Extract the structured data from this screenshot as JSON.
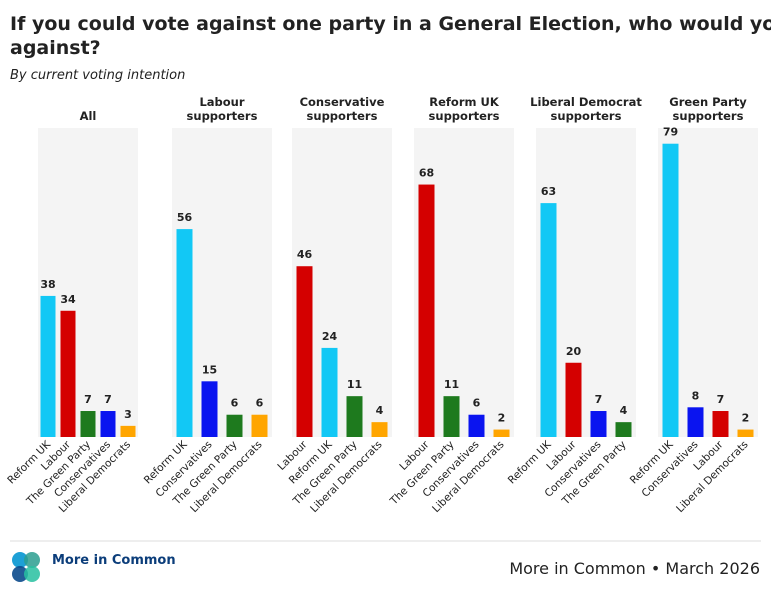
{
  "header": {
    "title": "If you could vote against one party in a General Election, who would you vote against?",
    "subtitle": "By current voting intention"
  },
  "chart_data": [
    {
      "type": "bar",
      "title": "All",
      "categories": [
        "Reform UK",
        "Labour",
        "The Green Party",
        "Conservatives",
        "Liberal Democrats"
      ],
      "values": [
        38,
        34,
        7,
        7,
        3
      ],
      "colors": [
        "#12c8f5",
        "#d40000",
        "#1e7a1e",
        "#0a14f0",
        "#ffa500"
      ],
      "ylim": [
        0,
        80
      ]
    },
    {
      "type": "bar",
      "title": "Labour supporters",
      "categories": [
        "Reform UK",
        "Conservatives",
        "The Green Party",
        "Liberal Democrats"
      ],
      "values": [
        56,
        15,
        6,
        6
      ],
      "colors": [
        "#12c8f5",
        "#0a14f0",
        "#1e7a1e",
        "#ffa500"
      ],
      "ylim": [
        0,
        80
      ]
    },
    {
      "type": "bar",
      "title": "Conservative supporters",
      "categories": [
        "Labour",
        "Reform UK",
        "The Green Party",
        "Liberal Democrats"
      ],
      "values": [
        46,
        24,
        11,
        4
      ],
      "colors": [
        "#d40000",
        "#12c8f5",
        "#1e7a1e",
        "#ffa500"
      ],
      "ylim": [
        0,
        80
      ]
    },
    {
      "type": "bar",
      "title": "Reform UK supporters",
      "categories": [
        "Labour",
        "The Green Party",
        "Conservatives",
        "Liberal Democrats"
      ],
      "values": [
        68,
        11,
        6,
        2
      ],
      "colors": [
        "#d40000",
        "#1e7a1e",
        "#0a14f0",
        "#ffa500"
      ],
      "ylim": [
        0,
        80
      ]
    },
    {
      "type": "bar",
      "title": "Liberal Democrat supporters",
      "categories": [
        "Reform UK",
        "Labour",
        "Conservatives",
        "The Green Party"
      ],
      "values": [
        63,
        20,
        7,
        4
      ],
      "colors": [
        "#12c8f5",
        "#d40000",
        "#0a14f0",
        "#1e7a1e"
      ],
      "ylim": [
        0,
        80
      ]
    },
    {
      "type": "bar",
      "title": "Green Party supporters",
      "categories": [
        "Reform UK",
        "Conservatives",
        "Labour",
        "Liberal Democrats"
      ],
      "values": [
        79,
        8,
        7,
        2
      ],
      "colors": [
        "#12c8f5",
        "#0a14f0",
        "#d40000",
        "#ffa500"
      ],
      "ylim": [
        0,
        80
      ]
    }
  ],
  "footer": {
    "logo": "More in Common",
    "source": "More in Common • March 2026"
  }
}
